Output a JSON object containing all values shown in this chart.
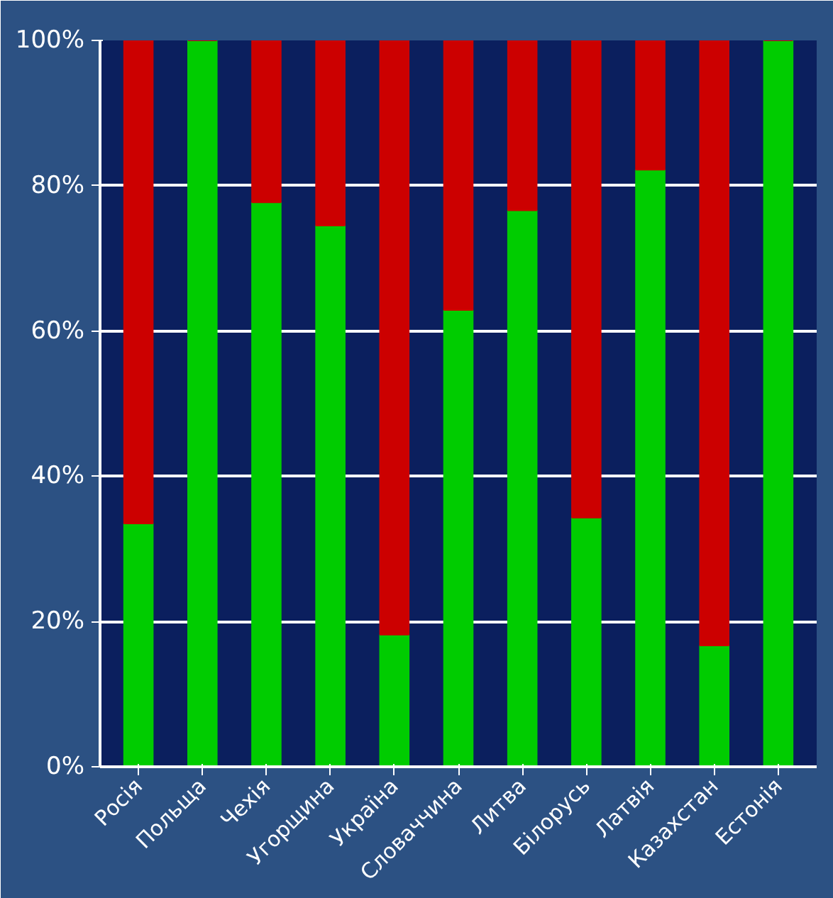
{
  "chart_data": {
    "type": "bar",
    "stacked": true,
    "categories": [
      "Росія",
      "Польща",
      "Чехія",
      "Угорщина",
      "Україна",
      "Словаччина",
      "Литва",
      "Білорусь",
      "Латвія",
      "Казахстан",
      "Естонія"
    ],
    "series": [
      {
        "color": "#00cc00",
        "values": [
          33.5,
          100,
          77.7,
          74.5,
          18.2,
          62.9,
          76.6,
          34.3,
          82.2,
          16.7,
          100
        ]
      },
      {
        "color": "#cc0000",
        "values": [
          66.5,
          0,
          22.3,
          25.5,
          81.8,
          37.1,
          23.4,
          65.7,
          17.8,
          83.3,
          0
        ]
      }
    ],
    "ylim": [
      0,
      100
    ],
    "yticks": [
      {
        "value": 0,
        "label": "0%"
      },
      {
        "value": 20,
        "label": "20%"
      },
      {
        "value": 40,
        "label": "40%"
      },
      {
        "value": 60,
        "label": "60%"
      },
      {
        "value": 80,
        "label": "80%"
      },
      {
        "value": 100,
        "label": "100%"
      }
    ],
    "grid": "y"
  }
}
